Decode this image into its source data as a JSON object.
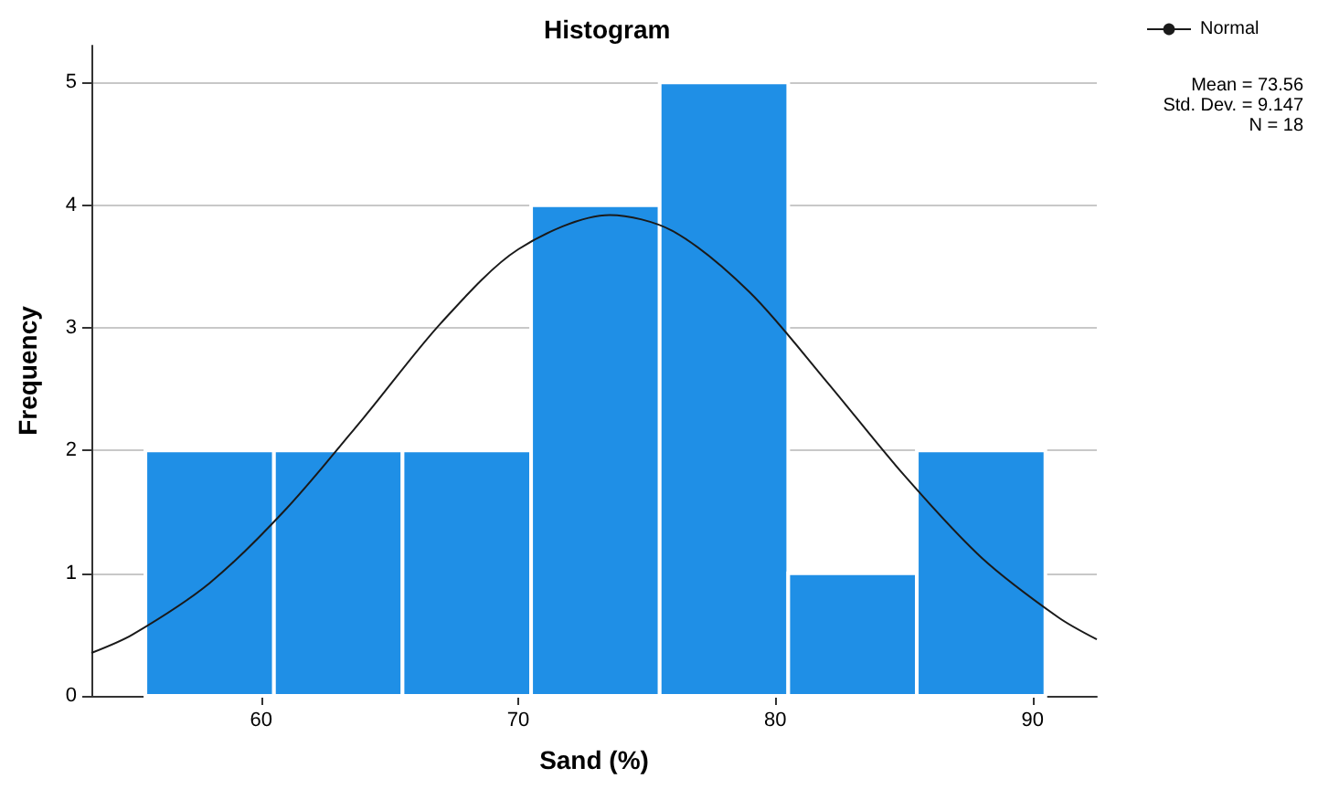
{
  "chart_data": {
    "type": "histogram",
    "title": "Histogram",
    "xlabel": "Sand (%)",
    "ylabel": "Frequency",
    "bins": [
      55.5,
      60.5,
      65.5,
      70.5,
      75.5,
      80.5,
      85.5,
      90.5
    ],
    "values": [
      2,
      2,
      2,
      4,
      5,
      1,
      2
    ],
    "color": "#1f8fe6",
    "series": [
      {
        "name": "Normal",
        "type": "line",
        "color": "#1a1a1a",
        "x": [
          53.4,
          55,
          58,
          61,
          64,
          67,
          70,
          73.56,
          76,
          79,
          82,
          85,
          88,
          91,
          92.5
        ],
        "values": [
          0.35,
          0.5,
          0.92,
          1.53,
          2.27,
          3.04,
          3.64,
          3.92,
          3.79,
          3.29,
          2.56,
          1.8,
          1.13,
          0.64,
          0.46
        ]
      }
    ],
    "xlim": [
      53.4,
      92.5
    ],
    "xticks": [
      60,
      70,
      80,
      90
    ],
    "ylim": [
      0,
      5.3
    ],
    "yticks": [
      0,
      1,
      2,
      3,
      4,
      5
    ],
    "grid": "y",
    "legend": "top right",
    "marker": "none",
    "annotations": [
      "Mean = 73.56",
      "Std. Dev. = 9.147",
      "N = 18"
    ]
  }
}
